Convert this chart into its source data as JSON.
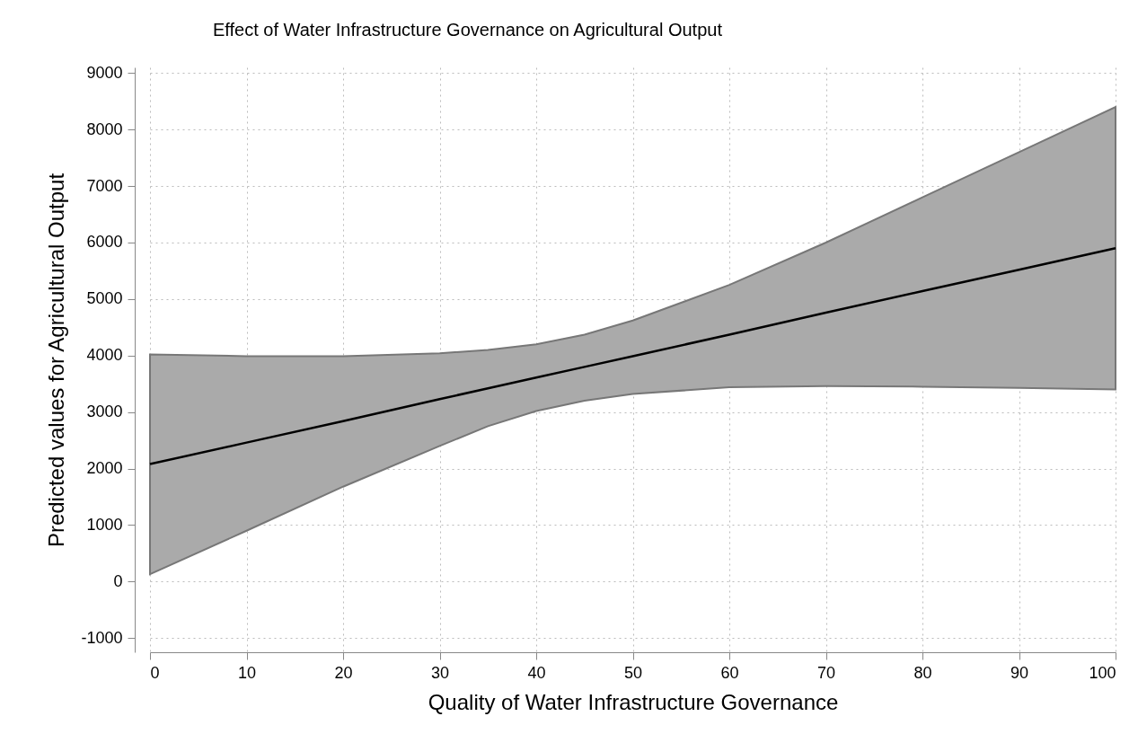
{
  "chart_data": {
    "type": "line",
    "title": "Effect of Water Infrastructure Governance on Agricultural Output",
    "xlabel": "Quality of Water Infrastructure Governance",
    "ylabel": "Predicted values for Agricultural Output",
    "x": [
      0,
      10,
      20,
      30,
      35,
      40,
      45,
      50,
      60,
      70,
      80,
      90,
      100
    ],
    "series": [
      {
        "color": "#000000",
        "values": [
          2080,
          2460,
          2840,
          3230,
          3420,
          3610,
          3800,
          3990,
          4370,
          4760,
          5140,
          5520,
          5900
        ],
        "lower": [
          130,
          900,
          1680,
          2400,
          2750,
          3020,
          3200,
          3320,
          3440,
          3460,
          3450,
          3430,
          3400
        ],
        "upper": [
          4020,
          3990,
          3990,
          4040,
          4100,
          4200,
          4370,
          4620,
          5250,
          6000,
          6800,
          7600,
          8400
        ]
      }
    ],
    "xlim": [
      0,
      100
    ],
    "xticks": [
      0,
      10,
      20,
      30,
      40,
      50,
      60,
      70,
      80,
      90,
      100
    ],
    "ylim": [
      -1250,
      9100
    ],
    "yticks": [
      -1000,
      0,
      1000,
      2000,
      3000,
      4000,
      5000,
      6000,
      7000,
      8000,
      9000
    ],
    "grid": true,
    "line_style": "solid"
  }
}
